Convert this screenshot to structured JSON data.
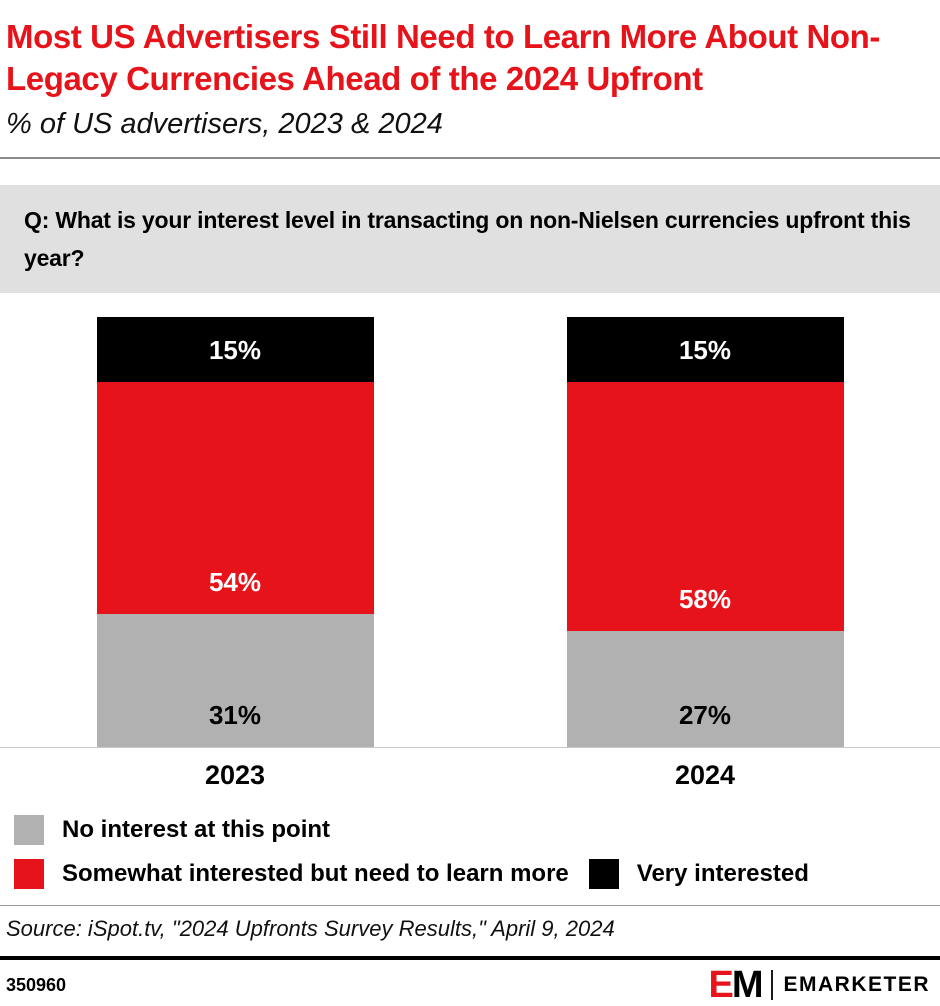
{
  "header": {
    "title": "Most US Advertisers Still Need to Learn More About Non-Legacy Currencies Ahead of the 2024 Upfront",
    "subtitle": "% of US advertisers, 2023 & 2024"
  },
  "question": "Q: What is your interest level in transacting on non-Nielsen currencies upfront this year?",
  "chart_data": {
    "type": "bar",
    "stacked": true,
    "categories": [
      "2023",
      "2024"
    ],
    "series": [
      {
        "name": "No interest at this point",
        "color": "#b1b1b1",
        "label_color": "#000000",
        "values": [
          31,
          27
        ]
      },
      {
        "name": "Somewhat interested but need to learn more",
        "color": "#e7131a",
        "label_color": "#ffffff",
        "values": [
          54,
          58
        ]
      },
      {
        "name": "Very interested",
        "color": "#000000",
        "label_color": "#ffffff",
        "values": [
          15,
          15
        ]
      }
    ],
    "ylim": [
      0,
      100
    ],
    "value_suffix": "%",
    "grid": false,
    "legend_position": "bottom"
  },
  "source": "Source: iSpot.tv, \"2024 Upfronts Survey Results,\" April 9, 2024",
  "footer": {
    "chart_id": "350960",
    "logo_e": "E",
    "logo_m": "M",
    "brand": "EMARKETER"
  },
  "colors": {
    "accent_red": "#e7131a",
    "bar_gray": "#b1b1b1",
    "question_bg": "#e0e0e0"
  }
}
